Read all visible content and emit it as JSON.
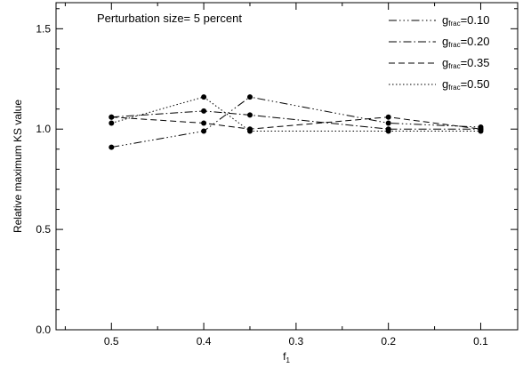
{
  "chart_data": {
    "type": "line",
    "title": "",
    "annotation": "Perturbation size= 5 percent",
    "xlabel": "f",
    "xlabel_sub": "1",
    "ylabel": "Relative maximum KS value",
    "x_reversed": true,
    "xlim": [
      0.56,
      0.06
    ],
    "ylim": [
      0.0,
      1.63
    ],
    "x_ticks": [
      0.5,
      0.4,
      0.3,
      0.2,
      0.1
    ],
    "x_tick_labels": [
      "0.5",
      "0.4",
      "0.3",
      "0.2",
      "0.1"
    ],
    "y_ticks": [
      0.0,
      0.5,
      1.0,
      1.5
    ],
    "y_tick_labels": [
      "0.0",
      "0.5",
      "1.0",
      "1.5"
    ],
    "grid": false,
    "legend_position": "top-right",
    "legend_prefix": "g",
    "legend_sub": "frac",
    "series": [
      {
        "name": "0.10",
        "dash": "dash-dot-dot-dot",
        "x": [
          0.5,
          0.4,
          0.35,
          0.2,
          0.1
        ],
        "y": [
          0.91,
          0.99,
          1.16,
          1.03,
          1.01
        ]
      },
      {
        "name": "0.20",
        "dash": "dash-dot",
        "x": [
          0.5,
          0.4,
          0.35,
          0.2,
          0.1
        ],
        "y": [
          1.06,
          1.09,
          1.07,
          1.0,
          1.0
        ]
      },
      {
        "name": "0.35",
        "dash": "dashed",
        "x": [
          0.5,
          0.4,
          0.35,
          0.2,
          0.1
        ],
        "y": [
          1.06,
          1.03,
          1.0,
          1.06,
          1.0
        ]
      },
      {
        "name": "0.50",
        "dash": "dotted",
        "x": [
          0.5,
          0.4,
          0.35,
          0.2,
          0.1
        ],
        "y": [
          1.03,
          1.16,
          0.99,
          0.99,
          0.99
        ]
      }
    ]
  }
}
